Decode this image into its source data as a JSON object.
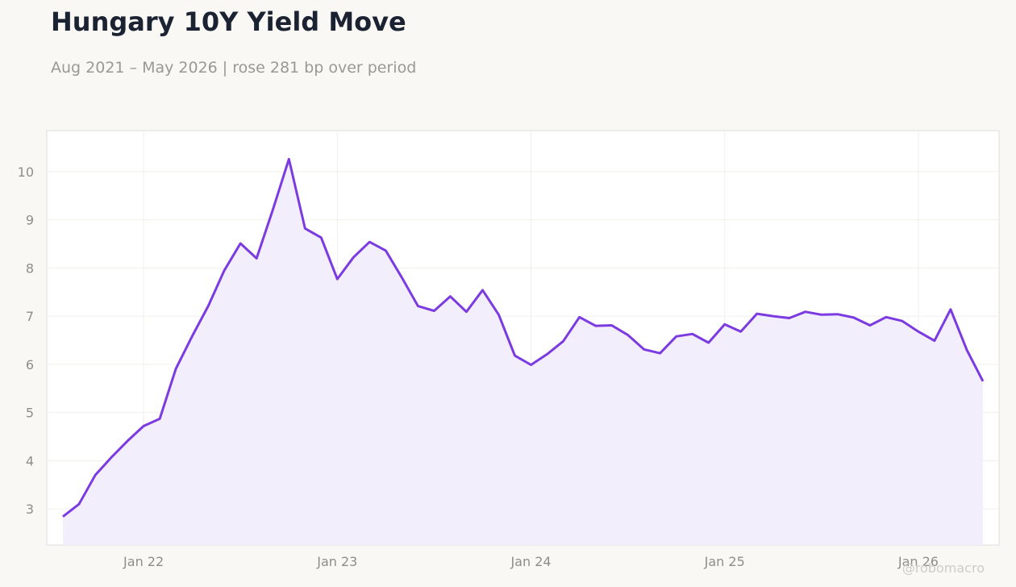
{
  "chart_data": {
    "type": "area",
    "title": "Hungary 10Y Yield Move",
    "subtitle": "Aug 2021 – May 2026 | rose 281 bp over period",
    "xlabel": "",
    "ylabel": "",
    "x_ticks": [
      {
        "label": "Jan 22",
        "date": "2022-01"
      },
      {
        "label": "Jan 23",
        "date": "2023-01"
      },
      {
        "label": "Jan 24",
        "date": "2024-01"
      },
      {
        "label": "Jan 25",
        "date": "2025-01"
      },
      {
        "label": "Jan 26",
        "date": "2026-01"
      }
    ],
    "y_ticks": [
      3,
      4,
      5,
      6,
      7,
      8,
      9,
      10
    ],
    "xlim": [
      "2021-07-01",
      "2026-06-01"
    ],
    "ylim": [
      2.25,
      10.85
    ],
    "grid": true,
    "line_color": "#7b3be0",
    "fill_color": "#f1ecfc",
    "watermark": "@robomacro",
    "series": [
      {
        "x": [
          "2021-08",
          "2021-09",
          "2021-10",
          "2021-11",
          "2021-12",
          "2022-01",
          "2022-02",
          "2022-03",
          "2022-04",
          "2022-05",
          "2022-06",
          "2022-07",
          "2022-08",
          "2022-09",
          "2022-10",
          "2022-11",
          "2022-12",
          "2023-01",
          "2023-02",
          "2023-03",
          "2023-04",
          "2023-05",
          "2023-06",
          "2023-07",
          "2023-08",
          "2023-09",
          "2023-10",
          "2023-11",
          "2023-12",
          "2024-01",
          "2024-02",
          "2024-03",
          "2024-04",
          "2024-05",
          "2024-06",
          "2024-07",
          "2024-08",
          "2024-09",
          "2024-10",
          "2024-11",
          "2024-12",
          "2025-01",
          "2025-02",
          "2025-03",
          "2025-04",
          "2025-05",
          "2025-06",
          "2025-07",
          "2025-08",
          "2025-09",
          "2025-10",
          "2025-11",
          "2025-12",
          "2026-01",
          "2026-02",
          "2026-03",
          "2026-04",
          "2026-05"
        ],
        "values": [
          2.84,
          3.1,
          3.7,
          4.07,
          4.41,
          4.72,
          4.87,
          5.91,
          6.58,
          7.21,
          7.95,
          8.51,
          8.2,
          9.2,
          10.26,
          8.82,
          8.63,
          7.77,
          8.22,
          8.54,
          8.36,
          7.8,
          7.21,
          7.11,
          7.41,
          7.09,
          7.54,
          7.03,
          6.18,
          5.99,
          6.21,
          6.48,
          6.98,
          6.8,
          6.81,
          6.61,
          6.31,
          6.23,
          6.58,
          6.63,
          6.45,
          6.83,
          6.68,
          7.05,
          7.0,
          6.96,
          7.09,
          7.03,
          7.04,
          6.97,
          6.81,
          6.98,
          6.9,
          6.68,
          6.49,
          7.14,
          6.3,
          5.65
        ]
      }
    ]
  }
}
